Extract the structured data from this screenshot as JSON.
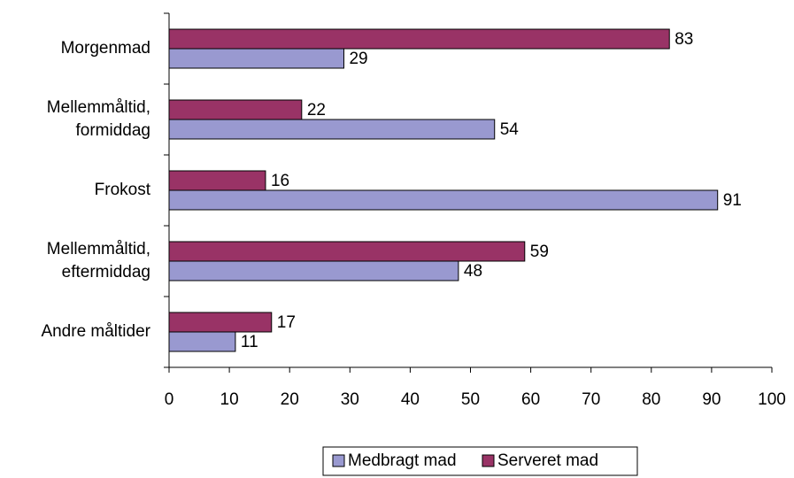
{
  "chart_data": {
    "type": "bar",
    "orientation": "horizontal",
    "categories": [
      "Morgenmad",
      "Mellemmåltid, formiddag",
      "Frokost",
      "Mellemmåltid, eftermiddag",
      "Andre måltider"
    ],
    "series": [
      {
        "name": "Medbragt mad",
        "color": "#9999d0",
        "values": [
          29,
          54,
          91,
          48,
          11
        ]
      },
      {
        "name": "Serveret mad",
        "color": "#993366",
        "values": [
          83,
          22,
          16,
          59,
          17
        ]
      }
    ],
    "xlim": [
      0,
      100
    ],
    "xticks": [
      0,
      10,
      20,
      30,
      40,
      50,
      60,
      70,
      80,
      90,
      100
    ],
    "grid": false,
    "legend": "bottom"
  }
}
